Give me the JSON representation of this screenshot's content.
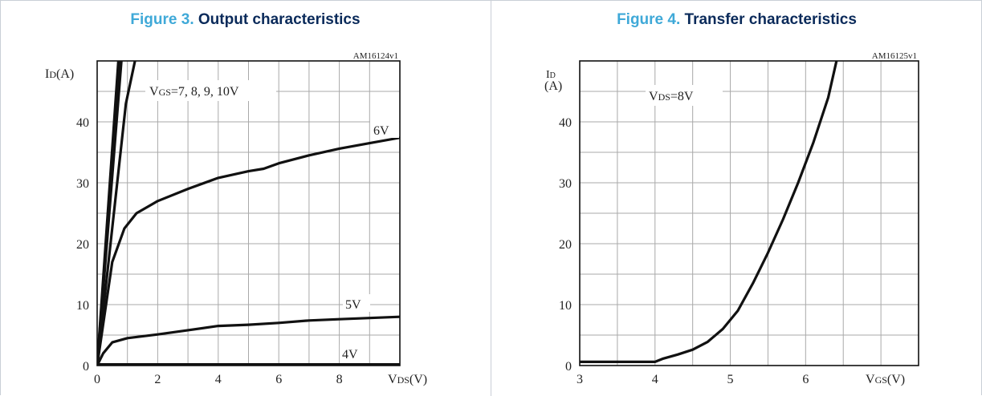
{
  "chart_data": [
    {
      "type": "line",
      "figure_number": "Figure 3.",
      "figure_title": "Output characteristics",
      "code": "AM16124v1",
      "ylabel_main": "I",
      "ylabel_sub": "D",
      "ylabel_unit": "(A)",
      "xlabel_main": "V",
      "xlabel_sub": "DS",
      "xlabel_unit": "(V)",
      "xlim": [
        0,
        10
      ],
      "ylim": [
        0,
        50
      ],
      "xticks": [
        0,
        2,
        4,
        6,
        8
      ],
      "yticks": [
        0,
        10,
        20,
        30,
        40
      ],
      "grid": true,
      "legend_label_main": "V",
      "legend_label_sub": "GS",
      "legend_label_rest": "=7, 8, 9, 10V",
      "curve_labels": [
        "6V",
        "5V",
        "4V"
      ],
      "series": [
        {
          "name": "10V",
          "x": [
            0,
            0.7
          ],
          "y": [
            0,
            50
          ]
        },
        {
          "name": "9V",
          "x": [
            0,
            0.75
          ],
          "y": [
            0,
            50
          ]
        },
        {
          "name": "8V",
          "x": [
            0,
            0.8
          ],
          "y": [
            0,
            50
          ]
        },
        {
          "name": "7V",
          "x": [
            0,
            0.95,
            1.25
          ],
          "y": [
            0,
            43,
            50
          ]
        },
        {
          "name": "6V",
          "x": [
            0,
            0.5,
            0.9,
            1.3,
            2,
            3,
            4,
            5,
            5.5,
            6,
            7,
            8,
            9,
            10
          ],
          "y": [
            0,
            17,
            22.5,
            25,
            27,
            29,
            30.8,
            31.9,
            32.3,
            33.2,
            34.5,
            35.6,
            36.5,
            37.4
          ]
        },
        {
          "name": "5V",
          "x": [
            0,
            0.2,
            0.5,
            1,
            2,
            3,
            4,
            5,
            6,
            7,
            8,
            9,
            10
          ],
          "y": [
            0,
            2,
            3.8,
            4.5,
            5.1,
            5.8,
            6.5,
            6.7,
            7,
            7.4,
            7.6,
            7.8,
            8
          ]
        },
        {
          "name": "4V",
          "x": [
            0,
            10
          ],
          "y": [
            0.1,
            0.1
          ]
        }
      ]
    },
    {
      "type": "line",
      "figure_number": "Figure 4.",
      "figure_title": "Transfer characteristics",
      "code": "AM16125v1",
      "ylabel_main": "I",
      "ylabel_sub": "D",
      "ylabel_unit": "(A)",
      "xlabel_main": "V",
      "xlabel_sub": "GS",
      "xlabel_unit": "(V)",
      "xlim": [
        3,
        7.5
      ],
      "ylim": [
        0,
        50
      ],
      "xticks": [
        3,
        4,
        5,
        6
      ],
      "yticks": [
        0,
        10,
        20,
        30,
        40
      ],
      "grid": true,
      "legend_label_main": "V",
      "legend_label_sub": "DS",
      "legend_label_rest": "=8V",
      "series": [
        {
          "name": "VDS=8V",
          "x": [
            3,
            4,
            4.1,
            4.3,
            4.5,
            4.7,
            4.9,
            5.1,
            5.3,
            5.5,
            5.7,
            5.9,
            6.1,
            6.3,
            6.41
          ],
          "y": [
            0.6,
            0.6,
            1.1,
            1.8,
            2.6,
            3.9,
            6,
            9,
            13.5,
            18.5,
            24,
            30,
            36.5,
            44,
            50
          ]
        }
      ]
    }
  ]
}
